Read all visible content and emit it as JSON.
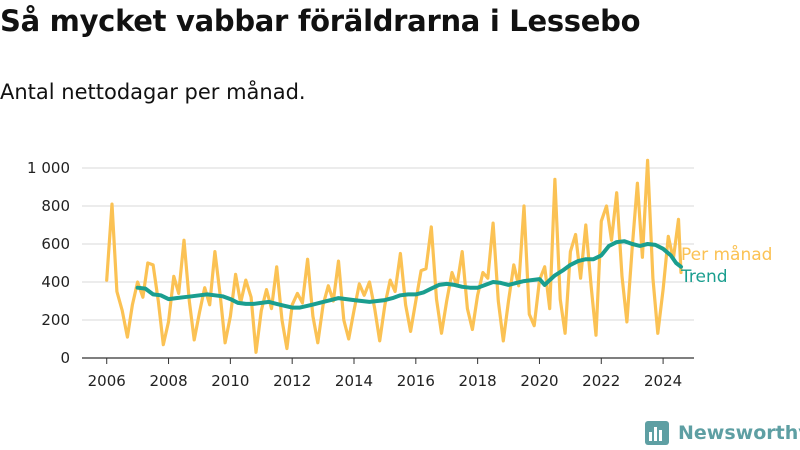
{
  "page": {
    "title": "Så mycket vabbar föräldrarna i Lessebo",
    "subtitle": "Antal nettodagar per månad."
  },
  "brand": {
    "name": "Newsworthy",
    "icon": "bar-chart-logo-icon",
    "color": "#5e9fa3"
  },
  "chart_data": {
    "type": "line",
    "title": "Så mycket vabbar föräldrarna i Lessebo",
    "subtitle": "Antal nettodagar per månad.",
    "xlabel": "",
    "ylabel": "",
    "xlim": [
      2005.2,
      2025.0
    ],
    "ylim": [
      0,
      1000
    ],
    "x_ticks": [
      2006,
      2008,
      2010,
      2012,
      2014,
      2016,
      2018,
      2020,
      2022,
      2024
    ],
    "y_ticks": [
      0,
      200,
      400,
      600,
      800,
      1000
    ],
    "y_tick_labels": [
      "0",
      "200",
      "400",
      "600",
      "800",
      "1 000"
    ],
    "grid": "horizontal",
    "legend_placement": "right, end of lines",
    "series": [
      {
        "name": "Per månad",
        "color": "#fbc254",
        "points": [
          [
            2006.0,
            410
          ],
          [
            2006.17,
            810
          ],
          [
            2006.33,
            350
          ],
          [
            2006.5,
            250
          ],
          [
            2006.67,
            110
          ],
          [
            2006.83,
            280
          ],
          [
            2007.0,
            400
          ],
          [
            2007.17,
            320
          ],
          [
            2007.33,
            500
          ],
          [
            2007.5,
            490
          ],
          [
            2007.67,
            300
          ],
          [
            2007.83,
            70
          ],
          [
            2008.0,
            190
          ],
          [
            2008.17,
            430
          ],
          [
            2008.33,
            340
          ],
          [
            2008.5,
            620
          ],
          [
            2008.67,
            300
          ],
          [
            2008.83,
            95
          ],
          [
            2009.0,
            240
          ],
          [
            2009.17,
            370
          ],
          [
            2009.33,
            280
          ],
          [
            2009.5,
            560
          ],
          [
            2009.67,
            330
          ],
          [
            2009.83,
            80
          ],
          [
            2010.0,
            220
          ],
          [
            2010.17,
            440
          ],
          [
            2010.33,
            290
          ],
          [
            2010.5,
            410
          ],
          [
            2010.67,
            320
          ],
          [
            2010.83,
            30
          ],
          [
            2011.0,
            250
          ],
          [
            2011.17,
            360
          ],
          [
            2011.33,
            260
          ],
          [
            2011.5,
            480
          ],
          [
            2011.67,
            200
          ],
          [
            2011.83,
            50
          ],
          [
            2012.0,
            280
          ],
          [
            2012.17,
            340
          ],
          [
            2012.33,
            290
          ],
          [
            2012.5,
            520
          ],
          [
            2012.67,
            220
          ],
          [
            2012.83,
            80
          ],
          [
            2013.0,
            280
          ],
          [
            2013.17,
            380
          ],
          [
            2013.33,
            300
          ],
          [
            2013.5,
            510
          ],
          [
            2013.67,
            200
          ],
          [
            2013.83,
            100
          ],
          [
            2014.0,
            250
          ],
          [
            2014.17,
            390
          ],
          [
            2014.33,
            330
          ],
          [
            2014.5,
            400
          ],
          [
            2014.67,
            260
          ],
          [
            2014.83,
            90
          ],
          [
            2015.0,
            280
          ],
          [
            2015.17,
            410
          ],
          [
            2015.33,
            350
          ],
          [
            2015.5,
            550
          ],
          [
            2015.67,
            280
          ],
          [
            2015.83,
            140
          ],
          [
            2016.0,
            300
          ],
          [
            2016.17,
            460
          ],
          [
            2016.33,
            470
          ],
          [
            2016.5,
            690
          ],
          [
            2016.67,
            310
          ],
          [
            2016.83,
            130
          ],
          [
            2017.0,
            300
          ],
          [
            2017.17,
            450
          ],
          [
            2017.33,
            380
          ],
          [
            2017.5,
            560
          ],
          [
            2017.67,
            260
          ],
          [
            2017.83,
            150
          ],
          [
            2018.0,
            330
          ],
          [
            2018.17,
            450
          ],
          [
            2018.33,
            420
          ],
          [
            2018.5,
            710
          ],
          [
            2018.67,
            300
          ],
          [
            2018.83,
            90
          ],
          [
            2019.0,
            300
          ],
          [
            2019.17,
            490
          ],
          [
            2019.33,
            380
          ],
          [
            2019.5,
            800
          ],
          [
            2019.67,
            230
          ],
          [
            2019.83,
            170
          ],
          [
            2020.0,
            410
          ],
          [
            2020.17,
            480
          ],
          [
            2020.33,
            260
          ],
          [
            2020.5,
            940
          ],
          [
            2020.67,
            310
          ],
          [
            2020.83,
            130
          ],
          [
            2021.0,
            560
          ],
          [
            2021.17,
            650
          ],
          [
            2021.33,
            420
          ],
          [
            2021.5,
            700
          ],
          [
            2021.67,
            380
          ],
          [
            2021.83,
            120
          ],
          [
            2022.0,
            720
          ],
          [
            2022.17,
            800
          ],
          [
            2022.33,
            620
          ],
          [
            2022.5,
            870
          ],
          [
            2022.67,
            430
          ],
          [
            2022.83,
            190
          ],
          [
            2023.0,
            580
          ],
          [
            2023.17,
            920
          ],
          [
            2023.33,
            530
          ],
          [
            2023.5,
            1040
          ],
          [
            2023.67,
            420
          ],
          [
            2023.83,
            130
          ],
          [
            2024.0,
            360
          ],
          [
            2024.17,
            640
          ],
          [
            2024.33,
            520
          ],
          [
            2024.5,
            730
          ],
          [
            2024.58,
            450
          ]
        ]
      },
      {
        "name": "Trend",
        "color": "#1a9e8f",
        "points": [
          [
            2007.0,
            370
          ],
          [
            2007.25,
            365
          ],
          [
            2007.5,
            335
          ],
          [
            2007.75,
            330
          ],
          [
            2008.0,
            310
          ],
          [
            2008.25,
            315
          ],
          [
            2008.5,
            320
          ],
          [
            2008.75,
            325
          ],
          [
            2009.0,
            330
          ],
          [
            2009.25,
            335
          ],
          [
            2009.5,
            330
          ],
          [
            2009.75,
            325
          ],
          [
            2010.0,
            310
          ],
          [
            2010.25,
            290
          ],
          [
            2010.5,
            285
          ],
          [
            2010.75,
            285
          ],
          [
            2011.0,
            290
          ],
          [
            2011.25,
            295
          ],
          [
            2011.5,
            285
          ],
          [
            2011.75,
            275
          ],
          [
            2012.0,
            265
          ],
          [
            2012.25,
            265
          ],
          [
            2012.5,
            275
          ],
          [
            2012.75,
            285
          ],
          [
            2013.0,
            295
          ],
          [
            2013.25,
            305
          ],
          [
            2013.5,
            315
          ],
          [
            2013.75,
            310
          ],
          [
            2014.0,
            305
          ],
          [
            2014.25,
            300
          ],
          [
            2014.5,
            295
          ],
          [
            2014.75,
            300
          ],
          [
            2015.0,
            305
          ],
          [
            2015.25,
            315
          ],
          [
            2015.5,
            330
          ],
          [
            2015.75,
            335
          ],
          [
            2016.0,
            335
          ],
          [
            2016.25,
            345
          ],
          [
            2016.5,
            365
          ],
          [
            2016.75,
            385
          ],
          [
            2017.0,
            390
          ],
          [
            2017.25,
            385
          ],
          [
            2017.5,
            375
          ],
          [
            2017.75,
            370
          ],
          [
            2018.0,
            370
          ],
          [
            2018.25,
            385
          ],
          [
            2018.5,
            400
          ],
          [
            2018.75,
            395
          ],
          [
            2019.0,
            385
          ],
          [
            2019.25,
            395
          ],
          [
            2019.5,
            405
          ],
          [
            2019.75,
            410
          ],
          [
            2020.0,
            415
          ],
          [
            2020.17,
            385
          ],
          [
            2020.33,
            410
          ],
          [
            2020.5,
            435
          ],
          [
            2020.75,
            460
          ],
          [
            2021.0,
            490
          ],
          [
            2021.25,
            510
          ],
          [
            2021.5,
            520
          ],
          [
            2021.75,
            520
          ],
          [
            2022.0,
            540
          ],
          [
            2022.25,
            590
          ],
          [
            2022.5,
            610
          ],
          [
            2022.75,
            615
          ],
          [
            2023.0,
            600
          ],
          [
            2023.25,
            590
          ],
          [
            2023.5,
            600
          ],
          [
            2023.75,
            595
          ],
          [
            2024.0,
            575
          ],
          [
            2024.25,
            540
          ],
          [
            2024.42,
            500
          ],
          [
            2024.58,
            480
          ]
        ]
      }
    ]
  }
}
